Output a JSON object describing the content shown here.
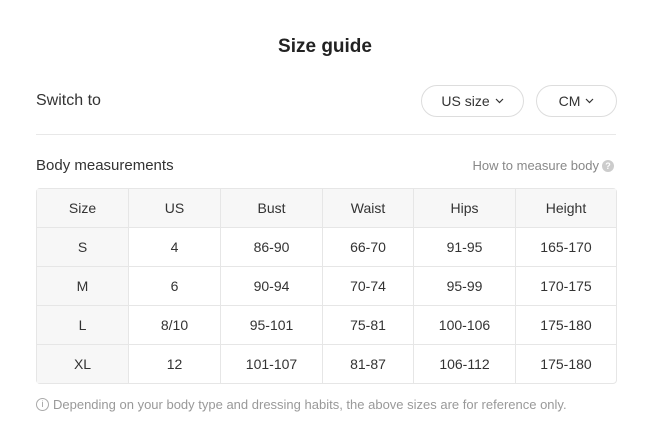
{
  "title": "Size guide",
  "switch": {
    "label": "Switch to",
    "size_system": "US size",
    "unit": "CM"
  },
  "section": {
    "title": "Body measurements",
    "measure_link": "How to measure body",
    "help_icon": "?"
  },
  "table": {
    "headers": [
      "Size",
      "US",
      "Bust",
      "Waist",
      "Hips",
      "Height"
    ],
    "rows": [
      [
        "S",
        "4",
        "86-90",
        "66-70",
        "91-95",
        "165-170"
      ],
      [
        "M",
        "6",
        "90-94",
        "70-74",
        "95-99",
        "170-175"
      ],
      [
        "L",
        "8/10",
        "95-101",
        "75-81",
        "100-106",
        "175-180"
      ],
      [
        "XL",
        "12",
        "101-107",
        "81-87",
        "106-112",
        "175-180"
      ]
    ]
  },
  "note": {
    "icon": "i",
    "text": "Depending on your body type and dressing habits, the above sizes are for reference only."
  }
}
